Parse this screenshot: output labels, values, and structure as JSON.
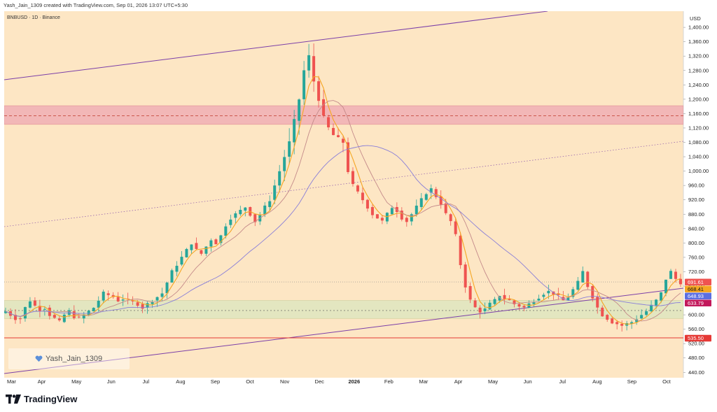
{
  "header": {
    "attribution": "Yash_Jain_1309 created with TradingView.com, Sep 01, 2026 13:07 UTC+5:30",
    "symbol": "BNBUSD · 1D · Binance",
    "currency": "USD"
  },
  "author_badge": {
    "name": "Yash_Jain_1309",
    "icon": "heart-icon"
  },
  "brand": {
    "name": "TradingView",
    "icon": "tradingview-logo-icon"
  },
  "colors": {
    "background": "#fde6c4",
    "up_candle": "#26a69a",
    "down_candle": "#ef5350",
    "ema_fast": "#f5a623",
    "ema_slow": "#c48a8a",
    "ma_long": "#8a7fd8",
    "channel": "#7b3fa8",
    "resistance_zone": "#f1b2b6",
    "support_zone": "#dfe6c0",
    "support_line": "#e53935"
  },
  "chart_data": {
    "type": "candlestick",
    "price_axis": {
      "label": "USD",
      "ticks": [
        "1,400.00",
        "1,360.00",
        "1,320.00",
        "1,280.00",
        "1,240.00",
        "1,200.00",
        "1,160.00",
        "1,120.00",
        "1,080.00",
        "1,040.00",
        "1,000.00",
        "960.00",
        "920.00",
        "880.00",
        "840.00",
        "800.00",
        "760.00",
        "720.00",
        "680.00",
        "600.00",
        "560.00",
        "520.00",
        "480.00",
        "440.00"
      ],
      "range": [
        425,
        1445
      ]
    },
    "time_axis": {
      "ticks": [
        "Mar",
        "Apr",
        "May",
        "Jun",
        "Jul",
        "Aug",
        "Sep",
        "Oct",
        "Nov",
        "Dec",
        "2026",
        "Feb",
        "Mar",
        "Apr",
        "May",
        "Jun",
        "Jul",
        "Aug",
        "Sep",
        "Oct"
      ],
      "bold": [
        "2026"
      ]
    },
    "price_tags": [
      {
        "value": "691.61",
        "color": "#ef5350"
      },
      {
        "value": "668.41",
        "color": "#f5a623"
      },
      {
        "value": "648.93",
        "color": "#5b6ee1"
      },
      {
        "value": "633.79",
        "color": "#c2185b"
      },
      {
        "value": "535.50",
        "color": "#e53935"
      }
    ],
    "resistance_zone": [
      1130,
      1182
    ],
    "resistance_mid": 1154,
    "support_zone": [
      590,
      640
    ],
    "support_line": 536,
    "series_close_approx": [
      610,
      600,
      590,
      590,
      620,
      640,
      625,
      615,
      620,
      600,
      590,
      580,
      600,
      610,
      595,
      590,
      600,
      610,
      620,
      640,
      660,
      655,
      650,
      640,
      645,
      640,
      635,
      630,
      620,
      630,
      640,
      650,
      660,
      690,
      720,
      740,
      760,
      780,
      800,
      780,
      770,
      790,
      810,
      800,
      820,
      850,
      870,
      880,
      890,
      900,
      880,
      860,
      880,
      900,
      920,
      960,
      1000,
      1040,
      1080,
      1140,
      1200,
      1280,
      1320,
      1250,
      1200,
      1150,
      1120,
      1100,
      1090,
      1080,
      1000,
      960,
      940,
      920,
      900,
      880,
      870,
      860,
      880,
      900,
      890,
      870,
      860,
      880,
      900,
      920,
      940,
      950,
      930,
      910,
      880,
      860,
      820,
      740,
      680,
      640,
      620,
      610,
      615,
      630,
      640,
      655,
      645,
      640,
      630,
      625,
      620,
      630,
      640,
      650,
      660,
      665,
      660,
      650,
      640,
      650,
      670,
      690,
      720,
      680,
      650,
      620,
      600,
      590,
      580,
      575,
      570,
      575,
      580,
      590,
      600,
      610,
      625,
      640,
      660,
      700,
      720,
      700,
      690
    ]
  }
}
